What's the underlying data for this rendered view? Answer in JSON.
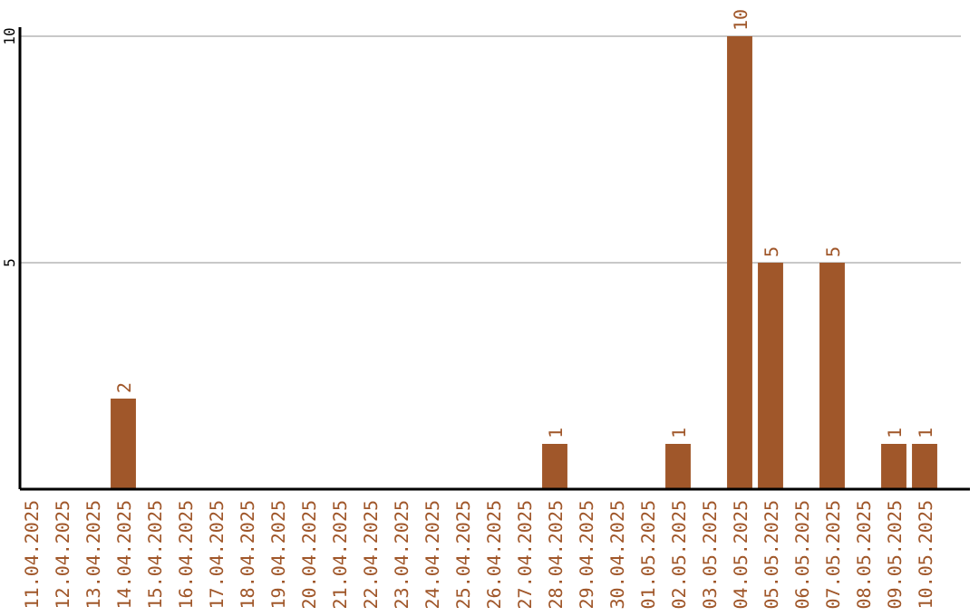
{
  "chart_data": {
    "type": "bar",
    "categories": [
      "11.04.2025",
      "12.04.2025",
      "13.04.2025",
      "14.04.2025",
      "15.04.2025",
      "16.04.2025",
      "17.04.2025",
      "18.04.2025",
      "19.04.2025",
      "20.04.2025",
      "21.04.2025",
      "22.04.2025",
      "23.04.2025",
      "24.04.2025",
      "25.04.2025",
      "26.04.2025",
      "27.04.2025",
      "28.04.2025",
      "29.04.2025",
      "30.04.2025",
      "01.05.2025",
      "02.05.2025",
      "03.05.2025",
      "04.05.2025",
      "05.05.2025",
      "06.05.2025",
      "07.05.2025",
      "08.05.2025",
      "09.05.2025",
      "10.05.2025"
    ],
    "values": [
      null,
      null,
      null,
      2,
      null,
      null,
      null,
      null,
      null,
      null,
      null,
      null,
      null,
      null,
      null,
      null,
      null,
      1,
      null,
      null,
      null,
      1,
      null,
      10,
      5,
      null,
      5,
      null,
      1,
      1
    ],
    "color": "#a0572a",
    "ylim": [
      0,
      10
    ],
    "yticks": [
      5,
      10
    ],
    "grid": "y",
    "data_labels": true
  }
}
